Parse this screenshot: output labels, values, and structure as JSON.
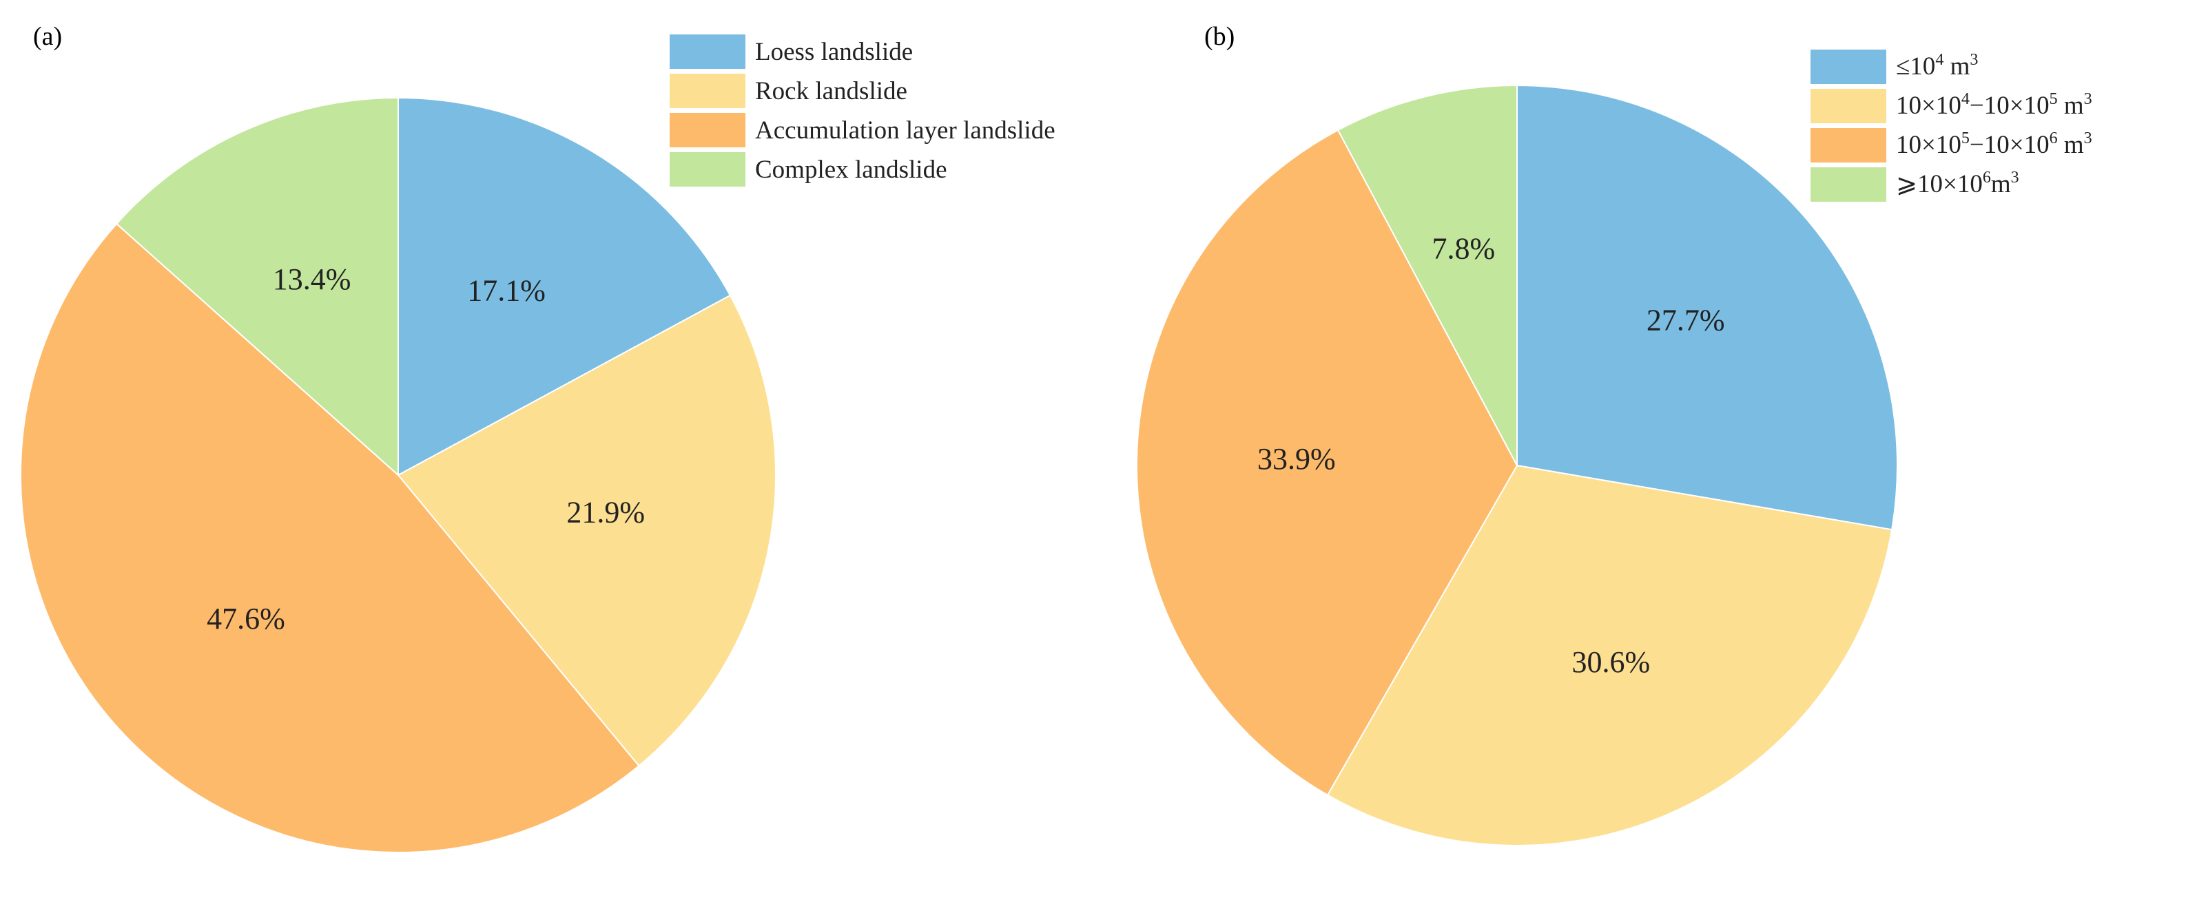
{
  "colors": {
    "blue": "#7bbde2",
    "yellow": "#fddf92",
    "orange": "#fdba6a",
    "green": "#c2e69c"
  },
  "chart_data": [
    {
      "type": "pie",
      "panel_label": "(a)",
      "start_angle_deg": 90,
      "direction": "clockwise",
      "legend_position": "top-right",
      "labels": [
        "Loess landslide",
        "Rock landslide",
        "Accumulation layer landslide",
        "Complex landslide"
      ],
      "values": [
        17.1,
        21.9,
        47.6,
        13.4
      ],
      "value_labels": [
        "17.1%",
        "21.9%",
        "47.6%",
        "13.4%"
      ],
      "colors": [
        "#7bbde2",
        "#fddf92",
        "#fdba6a",
        "#c2e69c"
      ]
    },
    {
      "type": "pie",
      "panel_label": "(b)",
      "start_angle_deg": 90,
      "direction": "clockwise",
      "legend_position": "top-right",
      "labels": [
        "≤10^4 m^3",
        "10×10^4−10×10^5 m^3",
        "10×10^5−10×10^6 m^3",
        "⩾10×10^6m^3"
      ],
      "values": [
        27.7,
        30.6,
        33.9,
        7.8
      ],
      "value_labels": [
        "27.7%",
        "30.6%",
        "33.9%",
        "7.8%"
      ],
      "colors": [
        "#7bbde2",
        "#fddf92",
        "#fdba6a",
        "#c2e69c"
      ]
    }
  ]
}
